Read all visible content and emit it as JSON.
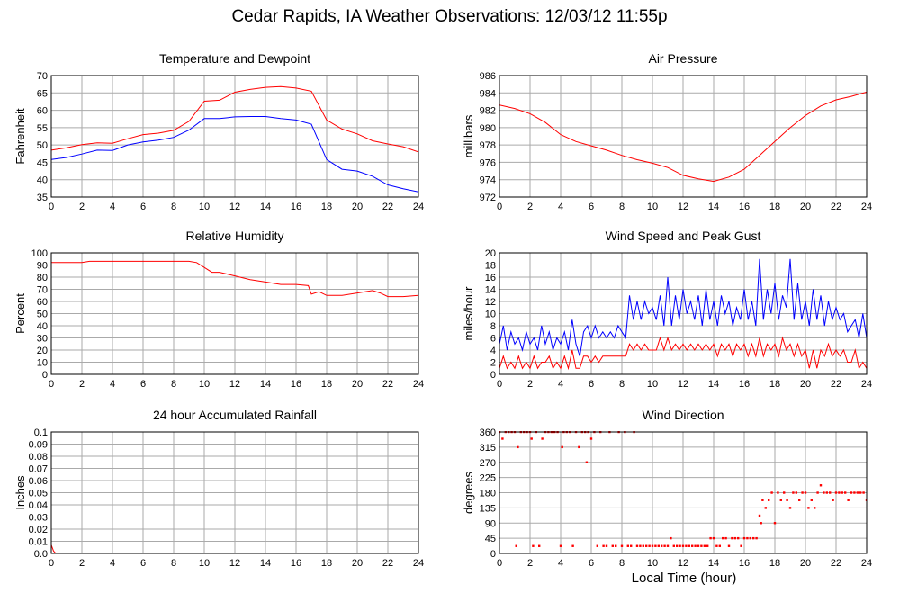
{
  "page": {
    "title": "Cedar Rapids, IA Weather Observations: 12/03/12 11:55p",
    "xlabel": "Local Time (hour)"
  },
  "colors": {
    "red": "#ff0000",
    "blue": "#0000ff",
    "grid": "#aaaaaa"
  },
  "chart_data": [
    {
      "id": "temp",
      "type": "line",
      "title": "Temperature and Dewpoint",
      "ylabel": "Fahrenheit",
      "xlim": [
        0,
        24
      ],
      "ylim": [
        35,
        70
      ],
      "xticks": [
        0,
        2,
        4,
        6,
        8,
        10,
        12,
        14,
        16,
        18,
        20,
        22,
        24
      ],
      "yticks": [
        35,
        40,
        45,
        50,
        55,
        60,
        65,
        70
      ],
      "grid": true,
      "series": [
        {
          "color": "#ff0000",
          "x": [
            0,
            1,
            2,
            3,
            4,
            5,
            6,
            7,
            8,
            9,
            10,
            11,
            12,
            13,
            14,
            15,
            16,
            17,
            18,
            19,
            20,
            21,
            22,
            23,
            24
          ],
          "y": [
            48.5,
            49.2,
            50.1,
            50.6,
            50.5,
            51.8,
            53.0,
            53.4,
            54.2,
            56.8,
            62.6,
            62.9,
            65.2,
            66.0,
            66.6,
            66.8,
            66.4,
            65.5,
            57.2,
            54.6,
            53.2,
            51.2,
            50.3,
            49.5,
            48.0
          ]
        },
        {
          "color": "#0000ff",
          "x": [
            0,
            1,
            2,
            3,
            4,
            5,
            6,
            7,
            8,
            9,
            10,
            11,
            12,
            13,
            14,
            15,
            16,
            17,
            18,
            19,
            20,
            21,
            22,
            23,
            24
          ],
          "y": [
            45.8,
            46.4,
            47.4,
            48.5,
            48.4,
            50.0,
            50.9,
            51.4,
            52.2,
            54.3,
            57.6,
            57.6,
            58.1,
            58.2,
            58.2,
            57.6,
            57.2,
            56.0,
            45.8,
            43.0,
            42.5,
            41.0,
            38.5,
            37.4,
            36.5
          ]
        }
      ]
    },
    {
      "id": "pressure",
      "type": "line",
      "title": "Air Pressure",
      "ylabel": "millibars",
      "xlim": [
        0,
        24
      ],
      "ylim": [
        972,
        986
      ],
      "xticks": [
        0,
        2,
        4,
        6,
        8,
        10,
        12,
        14,
        16,
        18,
        20,
        22,
        24
      ],
      "yticks": [
        972,
        974,
        976,
        978,
        980,
        982,
        984,
        986
      ],
      "grid": true,
      "series": [
        {
          "color": "#ff0000",
          "x": [
            0,
            1,
            2,
            3,
            4,
            5,
            6,
            7,
            8,
            9,
            10,
            11,
            12,
            13,
            14,
            15,
            16,
            17,
            18,
            19,
            20,
            21,
            22,
            23,
            24
          ],
          "y": [
            982.6,
            982.2,
            981.6,
            980.6,
            979.2,
            978.4,
            977.9,
            977.4,
            976.8,
            976.3,
            975.9,
            975.4,
            974.5,
            974.1,
            973.8,
            974.3,
            975.2,
            976.8,
            978.4,
            980.0,
            981.4,
            982.5,
            983.2,
            983.6,
            984.1
          ]
        }
      ]
    },
    {
      "id": "humidity",
      "type": "line",
      "title": "Relative Humidity",
      "ylabel": "Percent",
      "xlim": [
        0,
        24
      ],
      "ylim": [
        0,
        100
      ],
      "xticks": [
        0,
        2,
        4,
        6,
        8,
        10,
        12,
        14,
        16,
        18,
        20,
        22,
        24
      ],
      "yticks": [
        0,
        10,
        20,
        30,
        40,
        50,
        60,
        70,
        80,
        90,
        100
      ],
      "grid": true,
      "series": [
        {
          "color": "#ff0000",
          "x": [
            0,
            1,
            2,
            2.5,
            3,
            4,
            5,
            6,
            7,
            8,
            9,
            9.5,
            10,
            10.5,
            11,
            12,
            13,
            14,
            15,
            16,
            16.8,
            17,
            17.5,
            18,
            19,
            20,
            21,
            21.5,
            22,
            23,
            24
          ],
          "y": [
            92,
            92,
            92,
            93,
            93,
            93,
            93,
            93,
            93,
            93,
            93,
            92,
            88,
            84,
            84,
            81,
            78,
            76,
            74,
            74,
            73,
            66,
            68,
            65,
            65,
            67,
            69,
            67,
            64,
            64,
            65
          ]
        }
      ]
    },
    {
      "id": "wind",
      "type": "line",
      "title": "Wind Speed and Peak Gust",
      "ylabel": "miles/hour",
      "xlim": [
        0,
        24
      ],
      "ylim": [
        0,
        20
      ],
      "xticks": [
        0,
        2,
        4,
        6,
        8,
        10,
        12,
        14,
        16,
        18,
        20,
        22,
        24
      ],
      "yticks": [
        0,
        2,
        4,
        6,
        8,
        10,
        12,
        14,
        16,
        18,
        20
      ],
      "grid": true,
      "series": [
        {
          "color": "#0000ff",
          "x": [
            0,
            0.25,
            0.5,
            0.75,
            1,
            1.25,
            1.5,
            1.75,
            2,
            2.25,
            2.5,
            2.75,
            3,
            3.25,
            3.5,
            3.75,
            4,
            4.25,
            4.5,
            4.75,
            5,
            5.25,
            5.5,
            5.75,
            6,
            6.25,
            6.5,
            6.75,
            7,
            7.25,
            7.5,
            7.75,
            8,
            8.25,
            8.5,
            8.75,
            9,
            9.25,
            9.5,
            9.75,
            10,
            10.25,
            10.5,
            10.75,
            11,
            11.25,
            11.5,
            11.75,
            12,
            12.25,
            12.5,
            12.75,
            13,
            13.25,
            13.5,
            13.75,
            14,
            14.25,
            14.5,
            14.75,
            15,
            15.25,
            15.5,
            15.75,
            16,
            16.25,
            16.5,
            16.75,
            17,
            17.25,
            17.5,
            17.75,
            18,
            18.25,
            18.5,
            18.75,
            19,
            19.25,
            19.5,
            19.75,
            20,
            20.25,
            20.5,
            20.75,
            21,
            21.25,
            21.5,
            21.75,
            22,
            22.25,
            22.5,
            22.75,
            23,
            23.25,
            23.5,
            23.75,
            24
          ],
          "y": [
            5,
            8,
            4,
            7,
            5,
            6,
            4,
            7,
            5,
            6,
            4,
            8,
            5,
            7,
            4,
            6,
            5,
            7,
            4,
            9,
            5,
            3,
            7,
            8,
            6,
            8,
            6,
            7,
            6,
            7,
            6,
            8,
            7,
            6,
            13,
            9,
            12,
            9,
            12,
            10,
            11,
            9,
            13,
            8,
            16,
            8,
            13,
            9,
            14,
            10,
            12,
            9,
            13,
            8,
            14,
            9,
            12,
            8,
            13,
            10,
            12,
            8,
            11,
            9,
            14,
            9,
            12,
            8,
            19,
            9,
            14,
            10,
            15,
            9,
            13,
            11,
            19,
            9,
            15,
            9,
            12,
            8,
            14,
            9,
            13,
            8,
            12,
            9,
            11,
            9,
            10,
            7,
            8,
            9,
            6,
            10,
            6
          ]
        },
        {
          "color": "#ff0000",
          "x": [
            0,
            0.25,
            0.5,
            0.75,
            1,
            1.25,
            1.5,
            1.75,
            2,
            2.25,
            2.5,
            2.75,
            3,
            3.25,
            3.5,
            3.75,
            4,
            4.25,
            4.5,
            4.75,
            5,
            5.25,
            5.5,
            5.75,
            6,
            6.25,
            6.5,
            6.75,
            7,
            7.25,
            7.5,
            7.75,
            8,
            8.25,
            8.5,
            8.75,
            9,
            9.25,
            9.5,
            9.75,
            10,
            10.25,
            10.5,
            10.75,
            11,
            11.25,
            11.5,
            11.75,
            12,
            12.25,
            12.5,
            12.75,
            13,
            13.25,
            13.5,
            13.75,
            14,
            14.25,
            14.5,
            14.75,
            15,
            15.25,
            15.5,
            15.75,
            16,
            16.25,
            16.5,
            16.75,
            17,
            17.25,
            17.5,
            17.75,
            18,
            18.25,
            18.5,
            18.75,
            19,
            19.25,
            19.5,
            19.75,
            20,
            20.25,
            20.5,
            20.75,
            21,
            21.25,
            21.5,
            21.75,
            22,
            22.25,
            22.5,
            22.75,
            23,
            23.25,
            23.5,
            23.75,
            24
          ],
          "y": [
            1,
            3,
            1,
            2,
            1,
            3,
            1,
            2,
            1,
            3,
            1,
            2,
            2,
            3,
            1,
            2,
            1,
            3,
            1,
            4,
            1,
            1,
            3,
            3,
            2,
            3,
            2,
            3,
            3,
            3,
            3,
            3,
            3,
            3,
            5,
            4,
            5,
            4,
            5,
            4,
            4,
            4,
            6,
            4,
            6,
            4,
            5,
            4,
            5,
            4,
            5,
            4,
            5,
            4,
            5,
            4,
            5,
            3,
            5,
            4,
            5,
            3,
            5,
            4,
            5,
            3,
            5,
            3,
            6,
            3,
            5,
            4,
            5,
            3,
            6,
            4,
            5,
            3,
            5,
            3,
            4,
            1,
            4,
            1,
            4,
            3,
            5,
            3,
            4,
            3,
            4,
            2,
            2,
            4,
            1,
            2,
            1
          ]
        }
      ]
    },
    {
      "id": "rain",
      "type": "line",
      "title": "24 hour Accumulated Rainfall",
      "ylabel": "Inches",
      "xlim": [
        0,
        24
      ],
      "ylim": [
        0,
        0.1
      ],
      "xticks": [
        0,
        2,
        4,
        6,
        8,
        10,
        12,
        14,
        16,
        18,
        20,
        22,
        24
      ],
      "yticks": [
        0,
        0.01,
        0.02,
        0.03,
        0.04,
        0.05,
        0.06,
        0.07,
        0.08,
        0.09,
        0.1
      ],
      "ytick_labels": [
        "0.0",
        "0.01",
        "0.02",
        "0.03",
        "0.04",
        "0.05",
        "0.06",
        "0.07",
        "0.08",
        "0.09",
        "0.1"
      ],
      "grid": true,
      "series": [
        {
          "color": "#ff0000",
          "x": [
            0,
            0.15,
            0.3,
            24
          ],
          "y": [
            0.007,
            0.002,
            0,
            0
          ]
        }
      ]
    },
    {
      "id": "direction",
      "type": "scatter",
      "title": "Wind Direction",
      "ylabel": "degrees",
      "xlim": [
        0,
        24
      ],
      "ylim": [
        0,
        360
      ],
      "xticks": [
        0,
        2,
        4,
        6,
        8,
        10,
        12,
        14,
        16,
        18,
        20,
        22,
        24
      ],
      "yticks": [
        0,
        45,
        90,
        135,
        180,
        225,
        270,
        315,
        360
      ],
      "grid": true,
      "series": [
        {
          "color": "#ff0000",
          "x": [
            0,
            0.2,
            0.4,
            0.6,
            0.8,
            1.0,
            1.1,
            1.2,
            1.4,
            1.6,
            1.8,
            2.0,
            2.1,
            2.2,
            2.4,
            2.6,
            2.8,
            3.0,
            3.2,
            3.4,
            3.6,
            3.8,
            4.0,
            4.1,
            4.2,
            4.4,
            4.6,
            4.8,
            5.0,
            5.2,
            5.4,
            5.6,
            5.7,
            5.8,
            6.0,
            6.2,
            6.4,
            6.6,
            6.8,
            7.0,
            7.2,
            7.4,
            7.6,
            7.8,
            8.0,
            8.2,
            8.4,
            8.6,
            8.8,
            9.0,
            9.2,
            9.4,
            9.6,
            9.8,
            10.0,
            10.2,
            10.4,
            10.6,
            10.8,
            11.0,
            11.2,
            11.4,
            11.6,
            11.8,
            12.0,
            12.2,
            12.4,
            12.6,
            12.8,
            13.0,
            13.2,
            13.4,
            13.6,
            13.8,
            14.0,
            14.2,
            14.4,
            14.6,
            14.8,
            15.0,
            15.2,
            15.4,
            15.6,
            15.8,
            16.0,
            16.2,
            16.4,
            16.6,
            16.8,
            17.0,
            17.1,
            17.2,
            17.4,
            17.6,
            17.8,
            18.0,
            18.2,
            18.4,
            18.6,
            18.8,
            19.0,
            19.2,
            19.4,
            19.6,
            19.8,
            20.0,
            20.2,
            20.4,
            20.6,
            20.8,
            21.0,
            21.2,
            21.4,
            21.6,
            21.8,
            22.0,
            22.2,
            22.4,
            22.6,
            22.8,
            23.0,
            23.2,
            23.4,
            23.6,
            23.8,
            24.0
          ],
          "y": [
            360,
            340,
            360,
            360,
            360,
            360,
            22,
            315,
            360,
            360,
            360,
            360,
            340,
            22,
            360,
            22,
            340,
            360,
            360,
            360,
            360,
            360,
            22,
            315,
            360,
            360,
            360,
            22,
            360,
            315,
            360,
            360,
            270,
            360,
            340,
            360,
            22,
            360,
            22,
            22,
            360,
            22,
            22,
            360,
            22,
            360,
            22,
            22,
            360,
            22,
            22,
            22,
            22,
            22,
            22,
            22,
            22,
            22,
            22,
            22,
            45,
            22,
            22,
            22,
            22,
            22,
            22,
            22,
            22,
            22,
            22,
            22,
            22,
            45,
            45,
            22,
            22,
            45,
            45,
            22,
            45,
            45,
            45,
            22,
            45,
            45,
            45,
            45,
            45,
            112,
            90,
            158,
            135,
            158,
            180,
            90,
            180,
            158,
            180,
            158,
            135,
            180,
            180,
            158,
            180,
            180,
            135,
            158,
            135,
            180,
            202,
            180,
            180,
            180,
            158,
            180,
            180,
            180,
            180,
            158,
            180,
            180,
            180,
            180,
            180,
            158
          ]
        }
      ]
    }
  ]
}
